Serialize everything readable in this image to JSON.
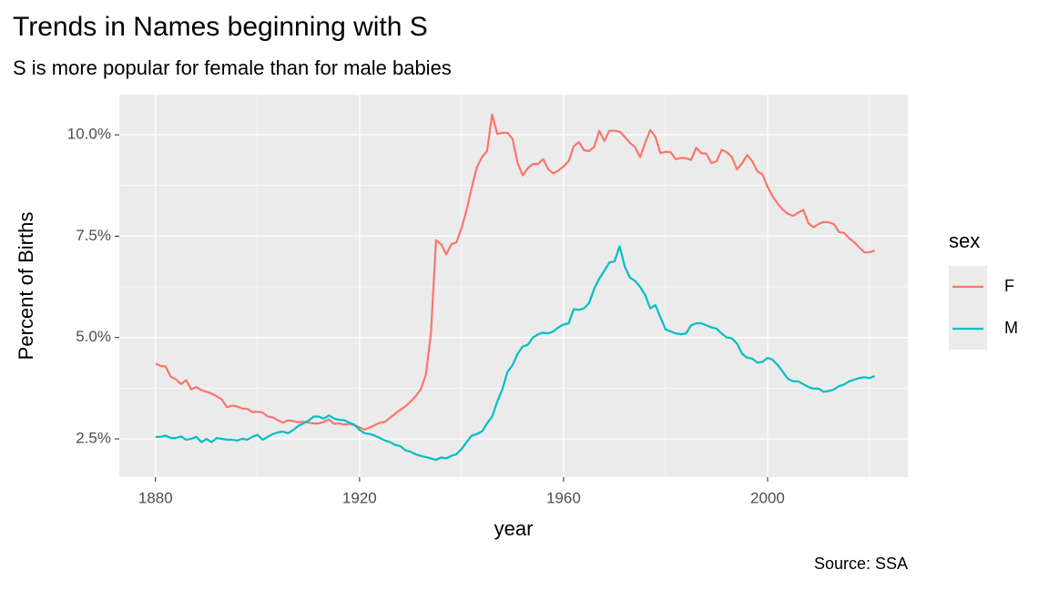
{
  "chart_data": {
    "type": "line",
    "title": "Trends in Names beginning with S",
    "subtitle": "S is more popular for female than for male babies",
    "x_label": "year",
    "y_label": "Percent of Births",
    "caption": "Source: SSA",
    "legend_title": "sex",
    "legend_position": "right",
    "grid": true,
    "xlim": [
      1872.9,
      2027.5
    ],
    "xticks": [
      1880,
      1920,
      1960,
      2000
    ],
    "x_minor_ticks": [
      1900,
      1940,
      1980,
      2020
    ],
    "ylim": [
      1.557,
      10.99
    ],
    "yticks": [
      {
        "value": 2.5,
        "label": "2.5%"
      },
      {
        "value": 5,
        "label": "5.0%"
      },
      {
        "value": 7.5,
        "label": "7.5%"
      },
      {
        "value": 10,
        "label": "10.0%"
      }
    ],
    "y_minor_ticks": [
      3.75,
      6.25,
      8.75
    ],
    "x": [
      1880,
      1881,
      1882,
      1883,
      1884,
      1885,
      1886,
      1887,
      1888,
      1889,
      1890,
      1891,
      1892,
      1893,
      1894,
      1895,
      1896,
      1897,
      1898,
      1899,
      1900,
      1901,
      1902,
      1903,
      1904,
      1905,
      1906,
      1907,
      1908,
      1909,
      1910,
      1911,
      1912,
      1913,
      1914,
      1915,
      1916,
      1917,
      1918,
      1919,
      1920,
      1921,
      1922,
      1923,
      1924,
      1925,
      1926,
      1927,
      1928,
      1929,
      1930,
      1931,
      1932,
      1933,
      1934,
      1935,
      1936,
      1937,
      1938,
      1939,
      1940,
      1941,
      1942,
      1943,
      1944,
      1945,
      1946,
      1947,
      1948,
      1949,
      1950,
      1951,
      1952,
      1953,
      1954,
      1955,
      1956,
      1957,
      1958,
      1959,
      1960,
      1961,
      1962,
      1963,
      1964,
      1965,
      1966,
      1967,
      1968,
      1969,
      1970,
      1971,
      1972,
      1973,
      1974,
      1975,
      1976,
      1977,
      1978,
      1979,
      1980,
      1981,
      1982,
      1983,
      1984,
      1985,
      1986,
      1987,
      1988,
      1989,
      1990,
      1991,
      1992,
      1993,
      1994,
      1995,
      1996,
      1997,
      1998,
      1999,
      2000,
      2001,
      2002,
      2003,
      2004,
      2005,
      2006,
      2007,
      2008,
      2009,
      2010,
      2011,
      2012,
      2013,
      2014,
      2015,
      2016,
      2017,
      2018,
      2019,
      2020,
      2021
    ],
    "series": [
      {
        "name": "F",
        "color": "#F8766D",
        "values": [
          4.36,
          4.3,
          4.28,
          4.03,
          3.97,
          3.85,
          3.95,
          3.72,
          3.78,
          3.7,
          3.66,
          3.62,
          3.55,
          3.47,
          3.28,
          3.32,
          3.3,
          3.25,
          3.24,
          3.16,
          3.17,
          3.15,
          3.05,
          3.03,
          2.96,
          2.9,
          2.96,
          2.94,
          2.91,
          2.92,
          2.9,
          2.88,
          2.88,
          2.92,
          2.98,
          2.87,
          2.88,
          2.85,
          2.87,
          2.84,
          2.78,
          2.73,
          2.78,
          2.84,
          2.9,
          2.92,
          3.02,
          3.12,
          3.22,
          3.3,
          3.42,
          3.55,
          3.72,
          4.08,
          5.1,
          7.4,
          7.3,
          7.05,
          7.3,
          7.35,
          7.7,
          8.15,
          8.7,
          9.2,
          9.45,
          9.6,
          10.5,
          10.02,
          10.05,
          10.05,
          9.9,
          9.3,
          9.0,
          9.18,
          9.28,
          9.28,
          9.4,
          9.15,
          9.05,
          9.12,
          9.22,
          9.35,
          9.72,
          9.82,
          9.62,
          9.6,
          9.7,
          10.1,
          9.85,
          10.1,
          10.1,
          10.08,
          9.95,
          9.8,
          9.7,
          9.45,
          9.8,
          10.12,
          9.95,
          9.55,
          9.58,
          9.57,
          9.4,
          9.43,
          9.42,
          9.38,
          9.68,
          9.55,
          9.53,
          9.3,
          9.35,
          9.63,
          9.57,
          9.45,
          9.15,
          9.3,
          9.5,
          9.35,
          9.1,
          9.02,
          8.72,
          8.48,
          8.3,
          8.15,
          8.05,
          8.0,
          8.08,
          8.15,
          7.82,
          7.72,
          7.8,
          7.85,
          7.84,
          7.8,
          7.6,
          7.58,
          7.45,
          7.35,
          7.22,
          7.1,
          7.1,
          7.15
        ]
      },
      {
        "name": "M",
        "color": "#00BFC4",
        "values": [
          2.55,
          2.55,
          2.58,
          2.52,
          2.52,
          2.56,
          2.48,
          2.5,
          2.55,
          2.42,
          2.5,
          2.42,
          2.52,
          2.5,
          2.48,
          2.48,
          2.46,
          2.5,
          2.48,
          2.55,
          2.6,
          2.48,
          2.55,
          2.62,
          2.66,
          2.68,
          2.64,
          2.72,
          2.82,
          2.88,
          2.95,
          3.05,
          3.05,
          3.0,
          3.08,
          3.0,
          2.97,
          2.96,
          2.9,
          2.85,
          2.72,
          2.64,
          2.62,
          2.58,
          2.52,
          2.46,
          2.42,
          2.35,
          2.32,
          2.22,
          2.18,
          2.12,
          2.08,
          2.05,
          2.02,
          1.98,
          2.04,
          2.02,
          2.08,
          2.12,
          2.25,
          2.42,
          2.58,
          2.62,
          2.68,
          2.88,
          3.05,
          3.42,
          3.72,
          4.15,
          4.32,
          4.6,
          4.78,
          4.82,
          5.0,
          5.08,
          5.12,
          5.1,
          5.15,
          5.25,
          5.32,
          5.35,
          5.7,
          5.68,
          5.72,
          5.85,
          6.2,
          6.45,
          6.65,
          6.85,
          6.88,
          7.25,
          6.75,
          6.48,
          6.4,
          6.25,
          6.05,
          5.72,
          5.8,
          5.5,
          5.2,
          5.15,
          5.1,
          5.08,
          5.1,
          5.3,
          5.35,
          5.35,
          5.3,
          5.25,
          5.22,
          5.1,
          5.0,
          4.98,
          4.85,
          4.6,
          4.5,
          4.48,
          4.38,
          4.4,
          4.5,
          4.45,
          4.32,
          4.15,
          3.98,
          3.92,
          3.92,
          3.85,
          3.78,
          3.74,
          3.74,
          3.66,
          3.68,
          3.72,
          3.8,
          3.84,
          3.92,
          3.96,
          4.0,
          4.02,
          4.0,
          4.05
        ]
      }
    ]
  }
}
